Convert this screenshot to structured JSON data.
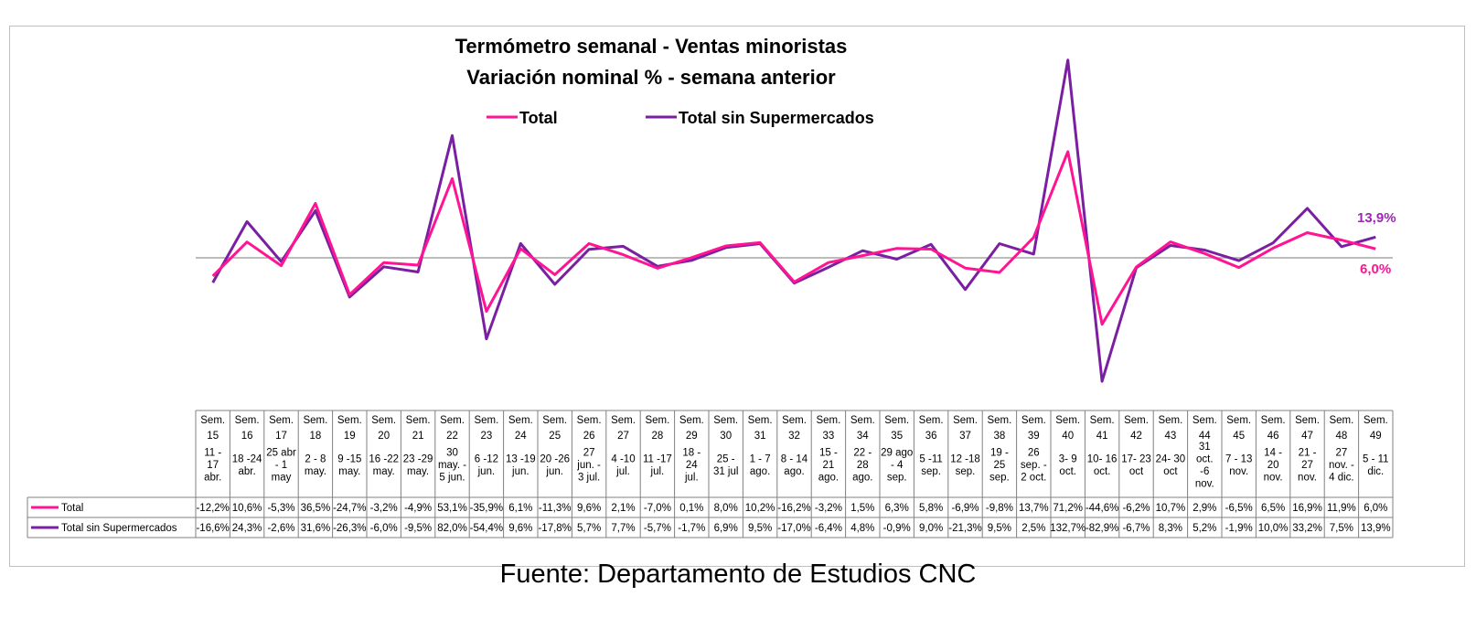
{
  "chart_data": {
    "type": "line",
    "title": "Termómetro semanal - Ventas minoristas",
    "subtitle": "Variación nominal % - semana anterior",
    "weeks": [
      "Sem. 15",
      "Sem. 16",
      "Sem. 17",
      "Sem. 18",
      "Sem. 19",
      "Sem. 20",
      "Sem. 21",
      "Sem. 22",
      "Sem. 23",
      "Sem. 24",
      "Sem. 25",
      "Sem. 26",
      "Sem. 27",
      "Sem. 28",
      "Sem. 29",
      "Sem. 30",
      "Sem. 31",
      "Sem. 32",
      "Sem. 33",
      "Sem. 34",
      "Sem. 35",
      "Sem. 36",
      "Sem. 37",
      "Sem. 38",
      "Sem. 39",
      "Sem. 40",
      "Sem. 41",
      "Sem. 42",
      "Sem. 43",
      "Sem. 44",
      "Sem. 45",
      "Sem. 46",
      "Sem. 47",
      "Sem. 48",
      "Sem. 49"
    ],
    "date_ranges": [
      "11 - 17 abr.",
      "18 -24 abr.",
      "25 abr - 1 may",
      "2 - 8 may.",
      "9 -15 may.",
      "16 -22 may.",
      "23 -29 may.",
      "30 may. - 5 jun.",
      "6 -12 jun.",
      "13 -19 jun.",
      "20 -26 jun.",
      "27 jun. - 3 jul.",
      "4 -10 jul.",
      "11 -17 jul.",
      "18 - 24 jul.",
      "25 - 31 jul",
      "1 - 7 ago.",
      "8 - 14 ago.",
      "15 - 21 ago.",
      "22 - 28 ago.",
      "29 ago - 4 sep.",
      "5 -11 sep.",
      "12 -18 sep.",
      "19 - 25 sep.",
      "26 sep. - 2 oct.",
      "3- 9 oct.",
      "10- 16 oct.",
      "17- 23 oct",
      "24- 30 oct",
      "31 oct. -6 nov.",
      "7 - 13 nov.",
      "14 - 20 nov.",
      "21 - 27 nov.",
      "27 nov. - 4 dic.",
      "5 - 11 dic."
    ],
    "series": [
      {
        "name": "Total",
        "color": "#FF1493",
        "values": [
          -12.2,
          10.6,
          -5.3,
          36.5,
          -24.7,
          -3.2,
          -4.9,
          53.1,
          -35.9,
          6.1,
          -11.3,
          9.6,
          2.1,
          -7.0,
          0.1,
          8.0,
          10.2,
          -16.2,
          -3.2,
          1.5,
          6.3,
          5.8,
          -6.9,
          -9.8,
          13.7,
          71.2,
          -44.6,
          -6.2,
          10.7,
          2.9,
          -6.5,
          6.5,
          16.9,
          11.9,
          6.0
        ],
        "labels": [
          "-12,2%",
          "10,6%",
          "-5,3%",
          "36,5%",
          "-24,7%",
          "-3,2%",
          "-4,9%",
          "53,1%",
          "-35,9%",
          "6,1%",
          "-11,3%",
          "9,6%",
          "2,1%",
          "-7,0%",
          "0,1%",
          "8,0%",
          "10,2%",
          "-16,2%",
          "-3,2%",
          "1,5%",
          "6,3%",
          "5,8%",
          "-6,9%",
          "-9,8%",
          "13,7%",
          "71,2%",
          "-44,6%",
          "-6,2%",
          "10,7%",
          "2,9%",
          "-6,5%",
          "6,5%",
          "16,9%",
          "11,9%",
          "6,0%"
        ],
        "end_label": "6,0%"
      },
      {
        "name": "Total sin Supermercados",
        "color": "#7B1FA2",
        "values": [
          -16.6,
          24.3,
          -2.6,
          31.6,
          -26.3,
          -6.0,
          -9.5,
          82.0,
          -54.4,
          9.6,
          -17.8,
          5.7,
          7.7,
          -5.7,
          -1.7,
          6.9,
          9.5,
          -17.0,
          -6.4,
          4.8,
          -0.9,
          9.0,
          -21.3,
          9.5,
          2.5,
          132.7,
          -82.9,
          -6.7,
          8.3,
          5.2,
          -1.9,
          10.0,
          33.2,
          7.5,
          13.9
        ],
        "labels": [
          "-16,6%",
          "24,3%",
          "-2,6%",
          "31,6%",
          "-26,3%",
          "-6,0%",
          "-9,5%",
          "82,0%",
          "-54,4%",
          "9,6%",
          "-17,8%",
          "5,7%",
          "7,7%",
          "-5,7%",
          "-1,7%",
          "6,9%",
          "9,5%",
          "-17,0%",
          "-6,4%",
          "4,8%",
          "-0,9%",
          "9,0%",
          "-21,3%",
          "9,5%",
          "2,5%",
          "132,7%",
          "-82,9%",
          "-6,7%",
          "8,3%",
          "5,2%",
          "-1,9%",
          "10,0%",
          "33,2%",
          "7,5%",
          "13,9%"
        ],
        "end_label": "13,9%"
      }
    ],
    "legend_position": "top-center",
    "grid": false,
    "source": "Fuente: Departamento de Estudios CNC"
  }
}
